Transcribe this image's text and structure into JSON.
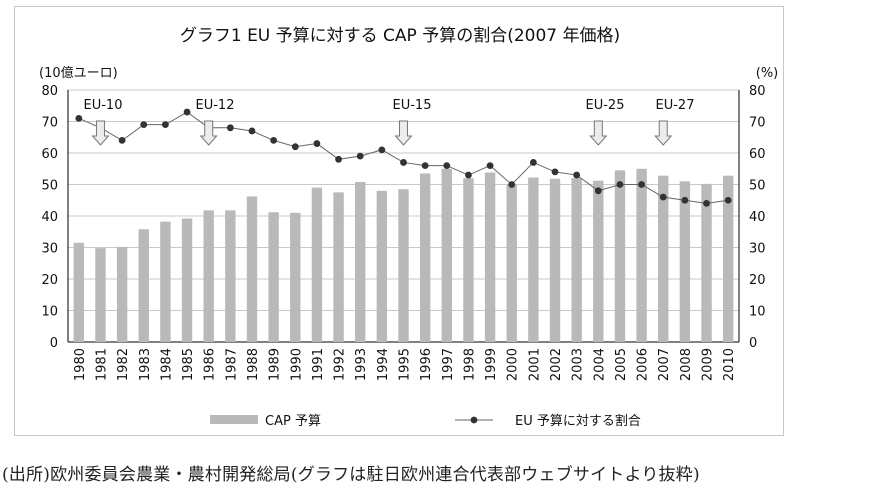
{
  "chart_data": {
    "type": "bar",
    "title": "グラフ1  EU 予算に対する CAP 予算の割合(2007 年価格)",
    "ylabel_left": "(10億ユーロ)",
    "ylabel_right": "(%)",
    "ylim": [
      0,
      80
    ],
    "y_ticks": [
      0,
      10,
      20,
      30,
      40,
      50,
      60,
      70,
      80
    ],
    "categories": [
      "1980",
      "1981",
      "1982",
      "1983",
      "1984",
      "1985",
      "1986",
      "1987",
      "1988",
      "1989",
      "1990",
      "1991",
      "1992",
      "1993",
      "1994",
      "1995",
      "1996",
      "1997",
      "1998",
      "1999",
      "2000",
      "2001",
      "2002",
      "2003",
      "2004",
      "2005",
      "2006",
      "2007",
      "2008",
      "2009",
      "2010"
    ],
    "series": [
      {
        "name": "CAP 予算",
        "kind": "bar",
        "axis": "left",
        "color": "#b9b9b9",
        "values": [
          31.5,
          29.8,
          30.2,
          35.8,
          38.2,
          39.2,
          41.8,
          41.8,
          46.2,
          41.2,
          41.0,
          49.0,
          47.5,
          50.8,
          48.0,
          48.5,
          53.5,
          55.0,
          52.0,
          53.8,
          50.0,
          52.2,
          51.8,
          52.0,
          51.2,
          54.5,
          55.0,
          52.8,
          51.0,
          50.2,
          52.8
        ]
      },
      {
        "name": "EU 予算に対する割合",
        "kind": "line",
        "axis": "right",
        "color": "#333333",
        "values": [
          71,
          68,
          64,
          69,
          69,
          73,
          68,
          68,
          67,
          64,
          62,
          63,
          58,
          59,
          61,
          57,
          56,
          56,
          53,
          56,
          50,
          57,
          54,
          53,
          48,
          50,
          50,
          46,
          45,
          44,
          45
        ]
      }
    ],
    "annotations": [
      {
        "label": "EU-10",
        "year": "1981"
      },
      {
        "label": "EU-12",
        "year": "1986"
      },
      {
        "label": "EU-15",
        "year": "1995"
      },
      {
        "label": "EU-25",
        "year": "2004"
      },
      {
        "label": "EU-27",
        "year": "2007"
      }
    ],
    "legend_position": "bottom"
  },
  "source": "(出所)欧州委員会農業・農村開発総局(グラフは駐日欧州連合代表部ウェブサイトより抜粋)"
}
